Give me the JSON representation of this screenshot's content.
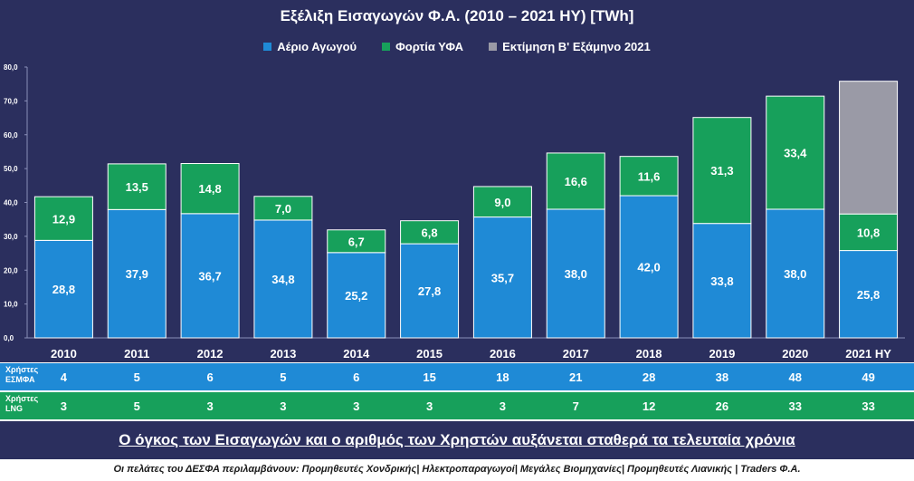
{
  "chart_data": {
    "type": "bar",
    "title": "Εξέλιξη Εισαγωγών Φ.Α. (2010 – 2021 ΗΥ) [TWh]",
    "categories": [
      "2010",
      "2011",
      "2012",
      "2013",
      "2014",
      "2015",
      "2016",
      "2017",
      "2018",
      "2019",
      "2020",
      "2021 ΗΥ"
    ],
    "series": [
      {
        "name": "Αέριο Αγωγού",
        "color": "#1f8ad6",
        "values": [
          28.8,
          37.9,
          36.7,
          34.8,
          25.2,
          27.8,
          35.7,
          38.0,
          42.0,
          33.8,
          38.0,
          25.8
        ],
        "labels": [
          "28,8",
          "37,9",
          "36,7",
          "34,8",
          "25,2",
          "27,8",
          "35,7",
          "38,0",
          "42,0",
          "33,8",
          "38,0",
          "25,8"
        ]
      },
      {
        "name": "Φορτία ΥΦΑ",
        "color": "#17a05b",
        "values": [
          12.9,
          13.5,
          14.8,
          7.0,
          6.7,
          6.8,
          9.0,
          16.6,
          11.6,
          31.3,
          33.4,
          10.8
        ],
        "labels": [
          "12,9",
          "13,5",
          "14,8",
          "7,0",
          "6,7",
          "6,8",
          "9,0",
          "16,6",
          "11,6",
          "31,3",
          "33,4",
          "10,8"
        ]
      },
      {
        "name": "Εκτίμηση Β' Εξάμηνο 2021",
        "color": "#9a9aa6",
        "values": [
          null,
          null,
          null,
          null,
          null,
          null,
          null,
          null,
          null,
          null,
          null,
          39.2
        ]
      }
    ],
    "ylim": [
      0,
      80
    ],
    "yticks": [
      "0,0",
      "10,0",
      "20,0",
      "30,0",
      "40,0",
      "50,0",
      "60,0",
      "70,0",
      "80,0"
    ],
    "stacked": true,
    "legend_position": "top",
    "grid": false
  },
  "users": {
    "esmfa": {
      "label": "Χρήστες ΕΣΜΦΑ",
      "values": [
        "4",
        "5",
        "6",
        "5",
        "6",
        "15",
        "18",
        "21",
        "28",
        "38",
        "48",
        "49"
      ],
      "color": "#1f8ad6"
    },
    "lng": {
      "label": "Χρήστες LNG",
      "values": [
        "3",
        "5",
        "3",
        "3",
        "3",
        "3",
        "3",
        "7",
        "12",
        "26",
        "33",
        "33"
      ],
      "color": "#17a05b"
    }
  },
  "summary": "Ο όγκος των Εισαγωγών και ο αριθμός των Χρηστών αυξάνεται σταθερά τα τελευταία χρόνια",
  "footnote": "Οι πελάτες του ΔΕΣΦΑ περιλαμβάνουν: Προμηθευτές Χονδρικής| Ηλεκτροπαραγωγοί| Μεγάλες Βιομηχανίες| Προμηθευτές Λιανικής | Traders Φ.Α."
}
